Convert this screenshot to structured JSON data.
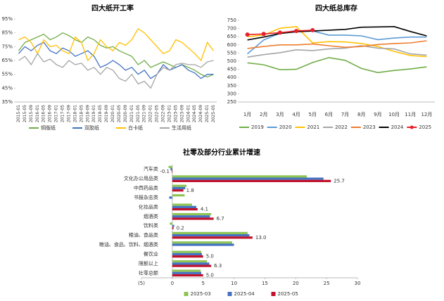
{
  "chart_data": [
    {
      "type": "line",
      "title": "四大纸开工率",
      "categories": [
        "2015-01",
        "2015-05",
        "2015-09",
        "2016-01",
        "2016-05",
        "2016-09",
        "2017-01",
        "2017-05",
        "2017-09",
        "2018-01",
        "2018-05",
        "2018-09",
        "2019-01",
        "2019-05",
        "2019-09",
        "2020-01",
        "2020-05",
        "2020-09",
        "2021-01",
        "2021-05",
        "2021-09",
        "2022-01",
        "2022-05",
        "2022-09",
        "2023-01",
        "2023-05",
        "2023-09",
        "2024-01",
        "2024-05",
        "2024-09",
        "2025-01",
        "2025-05"
      ],
      "series": [
        {
          "name": "铜版纸",
          "color": "#70ad47",
          "values": [
            72,
            78,
            80,
            82,
            84,
            80,
            82,
            85,
            83,
            80,
            78,
            82,
            80,
            76,
            74,
            75,
            72,
            70,
            68,
            62,
            65,
            60,
            62,
            64,
            62,
            60,
            62,
            60,
            58,
            55,
            53,
            55
          ]
        },
        {
          "name": "双胶纸",
          "color": "#4472c4",
          "values": [
            70,
            75,
            72,
            76,
            78,
            72,
            70,
            74,
            72,
            68,
            70,
            72,
            68,
            60,
            62,
            65,
            62,
            58,
            60,
            55,
            58,
            52,
            55,
            62,
            58,
            60,
            62,
            58,
            56,
            52,
            55,
            55
          ]
        },
        {
          "name": "白卡纸",
          "color": "#ffc000",
          "values": [
            80,
            82,
            78,
            70,
            80,
            75,
            76,
            72,
            70,
            82,
            78,
            65,
            70,
            80,
            75,
            72,
            78,
            76,
            80,
            88,
            85,
            80,
            75,
            70,
            72,
            80,
            78,
            74,
            70,
            65,
            78,
            72
          ]
        },
        {
          "name": "生活用纸",
          "color": "#a5a5a5",
          "values": [
            65,
            68,
            62,
            70,
            64,
            66,
            62,
            60,
            65,
            62,
            63,
            58,
            60,
            55,
            60,
            58,
            52,
            50,
            55,
            48,
            50,
            45,
            55,
            60,
            58,
            62,
            63,
            62,
            62,
            60,
            64,
            65
          ]
        }
      ],
      "ylim": [
        35,
        95
      ],
      "yticks": [
        {
          "value": 35,
          "label": "35%"
        },
        {
          "value": 45,
          "label": "45%"
        },
        {
          "value": 55,
          "label": "55%"
        },
        {
          "value": 65,
          "label": "65%"
        },
        {
          "value": 75,
          "label": "75%"
        },
        {
          "value": 85,
          "label": "85%"
        },
        {
          "value": 95,
          "label": "95%"
        }
      ]
    },
    {
      "type": "line",
      "title": "四大纸总库存",
      "categories": [
        "1月",
        "2月",
        "3月",
        "4月",
        "5月",
        "6月",
        "7月",
        "8月",
        "9月",
        "10月",
        "11月",
        "12月"
      ],
      "series": [
        {
          "name": "2019",
          "color": "#70ad47",
          "values": [
            490,
            478,
            448,
            450,
            492,
            522,
            505,
            455,
            430,
            443,
            452,
            465
          ]
        },
        {
          "name": "2020",
          "color": "#5b9bd5",
          "values": [
            545,
            630,
            672,
            688,
            685,
            660,
            660,
            655,
            632,
            642,
            648,
            648
          ]
        },
        {
          "name": "2021",
          "color": "#ffc000",
          "values": [
            650,
            660,
            702,
            712,
            612,
            620,
            618,
            608,
            590,
            560,
            535,
            528
          ]
        },
        {
          "name": "2022",
          "color": "#a5a5a5",
          "values": [
            525,
            540,
            552,
            570,
            565,
            575,
            580,
            595,
            580,
            575,
            545,
            537
          ]
        },
        {
          "name": "2023",
          "color": "#ed7d31",
          "values": [
            578,
            590,
            600,
            600,
            605,
            595,
            585,
            590,
            602,
            608,
            612,
            625
          ]
        },
        {
          "name": "2024",
          "color": "#000000",
          "values": [
            630,
            648,
            670,
            680,
            685,
            690,
            695,
            708,
            710,
            712,
            682,
            655
          ]
        },
        {
          "name": "2025",
          "color": "#e8202a",
          "marker": true,
          "values": [
            663,
            667,
            675,
            685,
            690,
            null,
            null,
            null,
            null,
            null,
            null,
            null
          ]
        }
      ],
      "ylim": [
        250,
        750
      ],
      "yticks": [
        250,
        300,
        350,
        400,
        450,
        500,
        550,
        600,
        650,
        700,
        750
      ]
    },
    {
      "type": "hbar",
      "title": "社零及部分行业累计增速",
      "categories": [
        "汽车类",
        "文化办公用品类",
        "中西药品类",
        "书报杂志类",
        "化妆品类",
        "烟酒类",
        "饮料类",
        "粮油、食品类",
        "粮油、食品、饮料、烟酒类",
        "餐饮业",
        "限额以上",
        "社零总额"
      ],
      "series": [
        {
          "name": "2025-03",
          "color": "#8dc454",
          "values": [
            -0.6,
            21.8,
            2.3,
            2.0,
            3.2,
            6.3,
            -0.4,
            12.2,
            9.7,
            4.7,
            5.6,
            4.6
          ]
        },
        {
          "name": "2025-04",
          "color": "#4472c4",
          "values": [
            -0.3,
            24.5,
            2.1,
            -0.5,
            3.9,
            6.1,
            0.3,
            12.5,
            10.0,
            4.8,
            6.0,
            4.7
          ]
        },
        {
          "name": "2025-05",
          "color": "#c0122b",
          "values": [
            -0.1,
            25.7,
            1.8,
            null,
            4.1,
            6.7,
            0.2,
            13.0,
            null,
            5.0,
            6.3,
            5.0
          ],
          "value_labels": [
            "-0.1",
            "25.7",
            "1.8",
            null,
            "4.1",
            "6.7",
            "0.2",
            "13.0",
            null,
            "5.0",
            "6.3",
            "5.0"
          ]
        }
      ],
      "xlim": [
        -5,
        30
      ],
      "xticks": [
        {
          "value": -5,
          "label": "(5)"
        },
        0,
        5,
        10,
        15,
        20,
        25,
        30
      ]
    }
  ]
}
